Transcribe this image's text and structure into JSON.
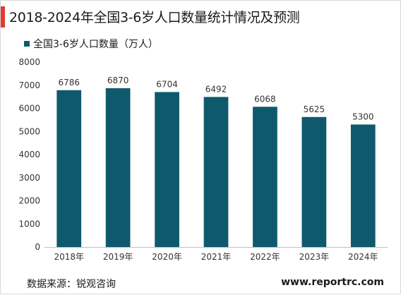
{
  "title": "2018-2024年全国3-6岁人口数量统计情况及预测",
  "accent_color": "#e23a31",
  "legend_label": "全国3-6岁人口数量（万人）",
  "source": "数据来源：锐观咨询",
  "website": "www.reportrc.com",
  "chart_data": {
    "type": "bar",
    "categories": [
      "2018年",
      "2019年",
      "2020年",
      "2021年",
      "2022年",
      "2023年",
      "2024年"
    ],
    "series": [
      {
        "name": "全国3-6岁人口数量（万人）",
        "values": [
          6786,
          6870,
          6704,
          6492,
          6068,
          5625,
          5300
        ],
        "color": "#0e5a6c"
      }
    ],
    "ylim": [
      0,
      8000
    ],
    "yticks": [
      0,
      1000,
      2000,
      3000,
      4000,
      5000,
      6000,
      7000,
      8000
    ],
    "grid": false,
    "legend_position": "top-left",
    "data_labels": true
  }
}
